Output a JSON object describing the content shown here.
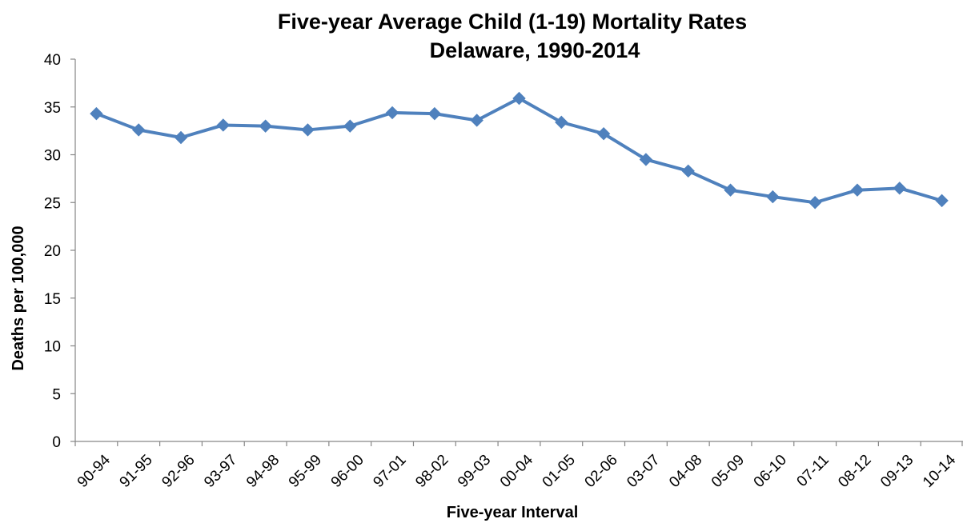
{
  "chart_data": {
    "type": "line",
    "title": "Five-year Average Child (1-19) Mortality Rates",
    "subtitle": "Delaware, 1990-2014",
    "xlabel": "Five-year  Interval",
    "ylabel": "Deaths per 100,000",
    "ylim": [
      0,
      40
    ],
    "yticks": [
      0,
      5,
      10,
      15,
      20,
      25,
      30,
      35,
      40
    ],
    "grid": false,
    "legend": "none",
    "categories": [
      "90-94",
      "91-95",
      "92-96",
      "93-97",
      "94-98",
      "95-99",
      "96-00",
      "97-01",
      "98-02",
      "99-03",
      "00-04",
      "01-05",
      "02-06",
      "03-07",
      "04-08",
      "05-09",
      "06-10",
      "07-11",
      "08-12",
      "09-13",
      "10-14"
    ],
    "series": [
      {
        "values": [
          34.3,
          32.6,
          31.8,
          33.1,
          33.0,
          32.6,
          33.0,
          34.4,
          34.3,
          33.6,
          35.9,
          33.4,
          32.2,
          29.5,
          28.3,
          26.3,
          25.6,
          25.0,
          26.3,
          26.5,
          25.2
        ],
        "color": "#4F81BD",
        "marker": "diamond"
      }
    ]
  }
}
